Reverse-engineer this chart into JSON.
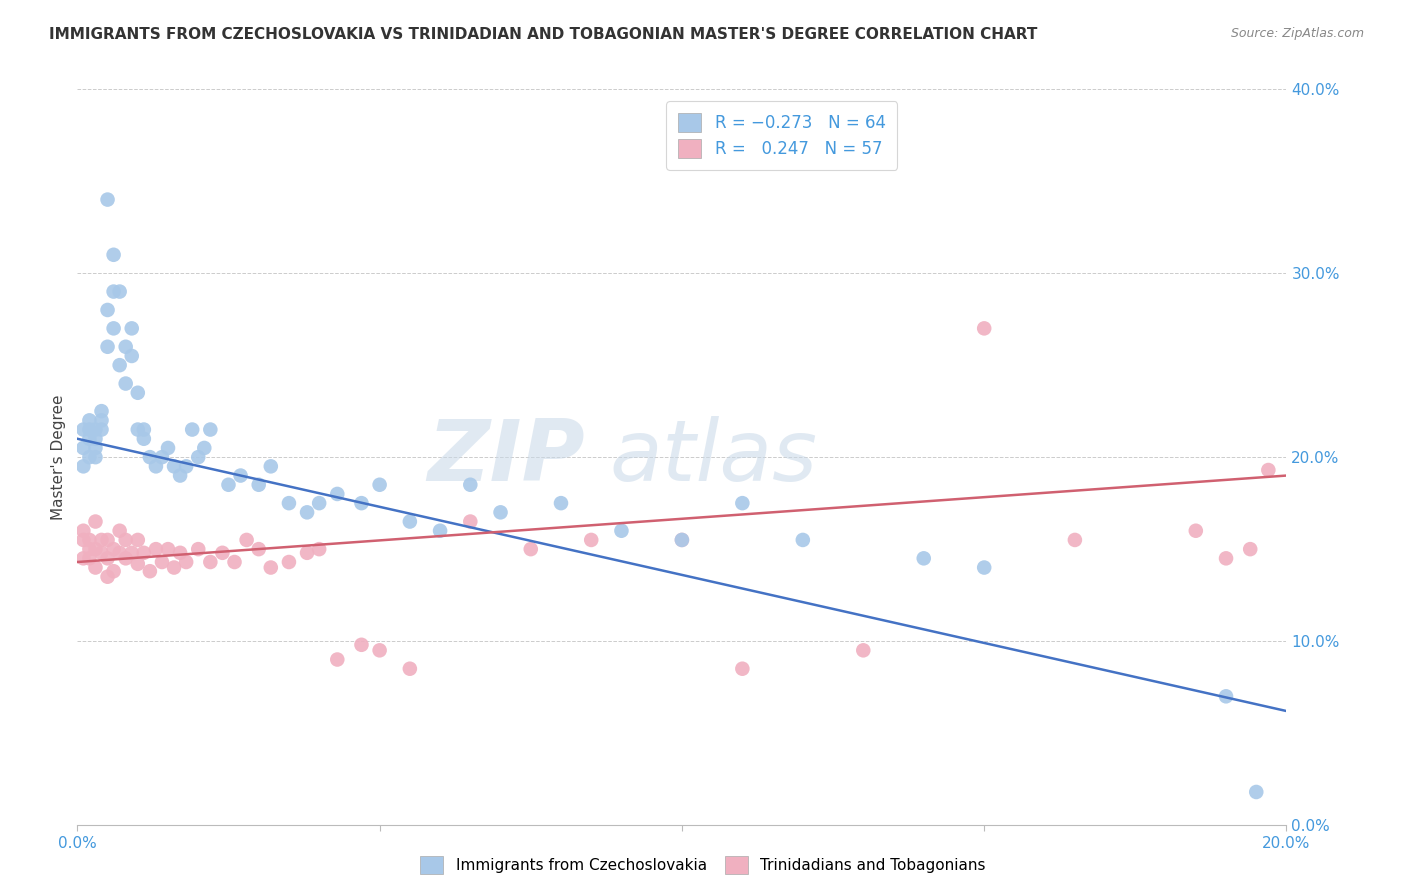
{
  "title": "IMMIGRANTS FROM CZECHOSLOVAKIA VS TRINIDADIAN AND TOBAGONIAN MASTER'S DEGREE CORRELATION CHART",
  "source": "Source: ZipAtlas.com",
  "ylabel": "Master's Degree",
  "ylabel_right_ticks": [
    "0.0%",
    "10.0%",
    "20.0%",
    "30.0%",
    "40.0%"
  ],
  "ylabel_right_vals": [
    0.0,
    0.1,
    0.2,
    0.3,
    0.4
  ],
  "xlim": [
    0.0,
    0.2
  ],
  "ylim": [
    0.0,
    0.4
  ],
  "color_blue": "#a8c8e8",
  "color_pink": "#f0b0c0",
  "line_color_blue": "#4472c4",
  "line_color_pink": "#d06070",
  "watermark_zip": "ZIP",
  "watermark_atlas": "atlas",
  "blue_line_x": [
    0.0,
    0.2
  ],
  "blue_line_y": [
    0.21,
    0.062
  ],
  "pink_line_x": [
    0.0,
    0.2
  ],
  "pink_line_y": [
    0.143,
    0.19
  ],
  "blue_scatter_x": [
    0.001,
    0.001,
    0.001,
    0.002,
    0.002,
    0.002,
    0.002,
    0.003,
    0.003,
    0.003,
    0.003,
    0.004,
    0.004,
    0.004,
    0.005,
    0.005,
    0.005,
    0.006,
    0.006,
    0.006,
    0.007,
    0.007,
    0.008,
    0.008,
    0.009,
    0.009,
    0.01,
    0.01,
    0.011,
    0.011,
    0.012,
    0.013,
    0.014,
    0.015,
    0.016,
    0.017,
    0.018,
    0.019,
    0.02,
    0.021,
    0.022,
    0.025,
    0.027,
    0.03,
    0.032,
    0.035,
    0.038,
    0.04,
    0.043,
    0.047,
    0.05,
    0.055,
    0.06,
    0.065,
    0.07,
    0.08,
    0.09,
    0.1,
    0.11,
    0.12,
    0.14,
    0.15,
    0.19,
    0.195
  ],
  "blue_scatter_y": [
    0.205,
    0.215,
    0.195,
    0.21,
    0.2,
    0.22,
    0.215,
    0.205,
    0.21,
    0.215,
    0.2,
    0.225,
    0.215,
    0.22,
    0.34,
    0.28,
    0.26,
    0.27,
    0.31,
    0.29,
    0.25,
    0.29,
    0.24,
    0.26,
    0.255,
    0.27,
    0.215,
    0.235,
    0.21,
    0.215,
    0.2,
    0.195,
    0.2,
    0.205,
    0.195,
    0.19,
    0.195,
    0.215,
    0.2,
    0.205,
    0.215,
    0.185,
    0.19,
    0.185,
    0.195,
    0.175,
    0.17,
    0.175,
    0.18,
    0.175,
    0.185,
    0.165,
    0.16,
    0.185,
    0.17,
    0.175,
    0.16,
    0.155,
    0.175,
    0.155,
    0.145,
    0.14,
    0.07,
    0.018
  ],
  "pink_scatter_x": [
    0.001,
    0.001,
    0.001,
    0.002,
    0.002,
    0.002,
    0.003,
    0.003,
    0.003,
    0.004,
    0.004,
    0.005,
    0.005,
    0.005,
    0.006,
    0.006,
    0.007,
    0.007,
    0.008,
    0.008,
    0.009,
    0.01,
    0.01,
    0.011,
    0.012,
    0.013,
    0.014,
    0.015,
    0.016,
    0.017,
    0.018,
    0.02,
    0.022,
    0.024,
    0.026,
    0.028,
    0.03,
    0.032,
    0.035,
    0.038,
    0.04,
    0.043,
    0.047,
    0.05,
    0.055,
    0.065,
    0.075,
    0.085,
    0.1,
    0.11,
    0.13,
    0.15,
    0.165,
    0.185,
    0.19,
    0.194,
    0.197
  ],
  "pink_scatter_y": [
    0.16,
    0.145,
    0.155,
    0.15,
    0.155,
    0.145,
    0.165,
    0.15,
    0.14,
    0.155,
    0.148,
    0.155,
    0.145,
    0.135,
    0.15,
    0.138,
    0.148,
    0.16,
    0.145,
    0.155,
    0.148,
    0.155,
    0.142,
    0.148,
    0.138,
    0.15,
    0.143,
    0.15,
    0.14,
    0.148,
    0.143,
    0.15,
    0.143,
    0.148,
    0.143,
    0.155,
    0.15,
    0.14,
    0.143,
    0.148,
    0.15,
    0.09,
    0.098,
    0.095,
    0.085,
    0.165,
    0.15,
    0.155,
    0.155,
    0.085,
    0.095,
    0.27,
    0.155,
    0.16,
    0.145,
    0.15,
    0.193
  ],
  "title_fontsize": 11,
  "source_fontsize": 9,
  "tick_fontsize": 11,
  "ylabel_fontsize": 11
}
